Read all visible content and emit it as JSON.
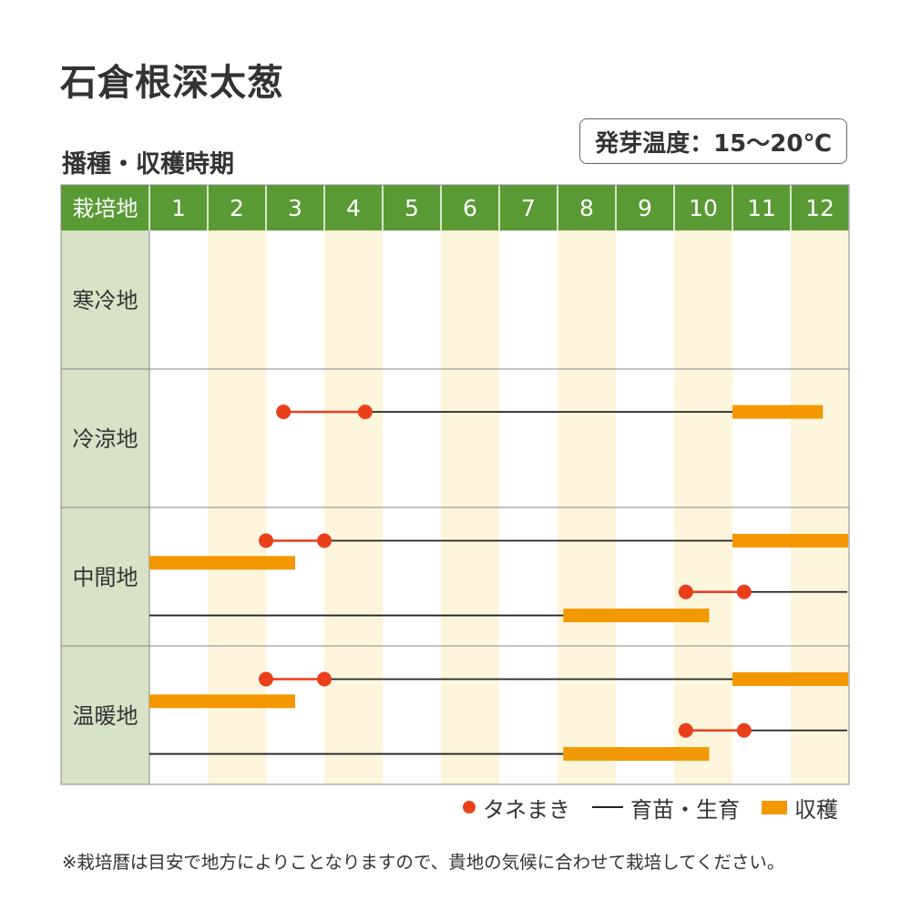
{
  "title": "石倉根深太葱",
  "subtitle": "播種・収穫時期",
  "temperature": "発芽温度：15～20℃",
  "note": "※栽培暦は目安で地方によりことなりますので、貴地の気候に合わせて栽培してください。",
  "colors": {
    "header_green": "#5a9a35",
    "region_bg": "#d7e2c6",
    "alt_column": "#fdf5dc",
    "sowing": "#ea3f1b",
    "growing": "#222222",
    "harvest": "#f39800"
  },
  "legend": {
    "sowing": "タネまき",
    "growing": "育苗・生育",
    "harvest": "収穫"
  },
  "chart_data": {
    "type": "gantt",
    "header_label": "栽培地",
    "months": [
      "1",
      "2",
      "3",
      "4",
      "5",
      "6",
      "7",
      "8",
      "9",
      "10",
      "11",
      "12"
    ],
    "x_unit": "month",
    "regions": [
      {
        "name": "寒冷地",
        "tracks": []
      },
      {
        "name": "冷涼地",
        "tracks": [
          {
            "sow": [
              3.3,
              4.7
            ],
            "grow": [
              4.7,
              11.0
            ],
            "harvest": [
              11.0,
              12.55
            ]
          }
        ]
      },
      {
        "name": "中間地",
        "tracks": [
          {
            "sow": [
              3.0,
              4.0
            ],
            "grow": [
              4.0,
              11.0
            ],
            "harvest": [
              11.0,
              13.0
            ]
          },
          {
            "harvest": [
              1.0,
              3.5
            ]
          },
          {
            "sow": [
              10.2,
              11.2
            ],
            "grow": [
              11.2,
              13.0
            ]
          },
          {
            "grow": [
              1.0,
              8.1
            ],
            "harvest": [
              8.1,
              10.6
            ]
          }
        ]
      },
      {
        "name": "温暖地",
        "tracks": [
          {
            "sow": [
              3.0,
              4.0
            ],
            "grow": [
              4.0,
              11.0
            ],
            "harvest": [
              11.0,
              13.0
            ]
          },
          {
            "harvest": [
              1.0,
              3.5
            ]
          },
          {
            "sow": [
              10.2,
              11.2
            ],
            "grow": [
              11.2,
              13.0
            ]
          },
          {
            "grow": [
              1.0,
              8.1
            ],
            "harvest": [
              8.1,
              10.6
            ]
          }
        ]
      }
    ]
  }
}
